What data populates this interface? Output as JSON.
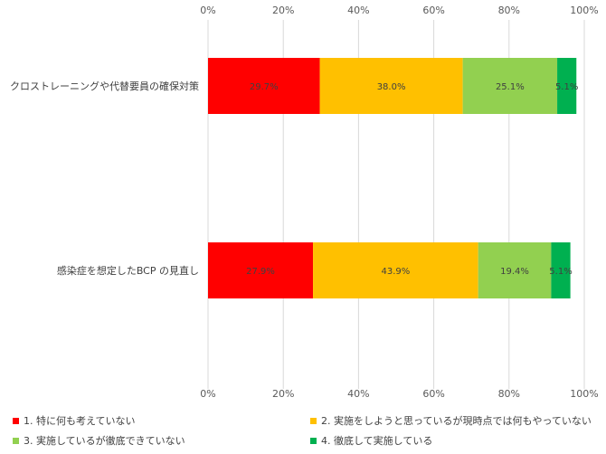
{
  "chart_data": {
    "type": "bar",
    "orientation": "horizontal",
    "stacked": "percent",
    "categories": [
      "クロストレーニングや代替要員の確保対策",
      "感染症を想定したBCP の見直し"
    ],
    "series": [
      {
        "name": "1. 特に何も考えていない",
        "color": "#FF0000",
        "values": [
          29.7,
          27.9
        ],
        "labels": [
          "29.7%",
          "27.9%"
        ]
      },
      {
        "name": "2. 実施をしようと思っているが現時点では何もやっていない",
        "color": "#FFC000",
        "values": [
          38.0,
          43.9
        ],
        "labels": [
          "38.0%",
          "43.9%"
        ]
      },
      {
        "name": "3. 実施しているが徹底できていない",
        "color": "#92D050",
        "values": [
          25.1,
          19.4
        ],
        "labels": [
          "25.1%",
          "19.4%"
        ]
      },
      {
        "name": "4. 徹底して実施している",
        "color": "#00B050",
        "values": [
          5.1,
          5.1
        ],
        "labels": [
          "5.1%",
          "5.1%"
        ]
      }
    ],
    "xticks": [
      "0%",
      "20%",
      "40%",
      "60%",
      "80%",
      "100%"
    ],
    "xlim": [
      0,
      100
    ],
    "grid": true,
    "legend_position": "bottom"
  }
}
